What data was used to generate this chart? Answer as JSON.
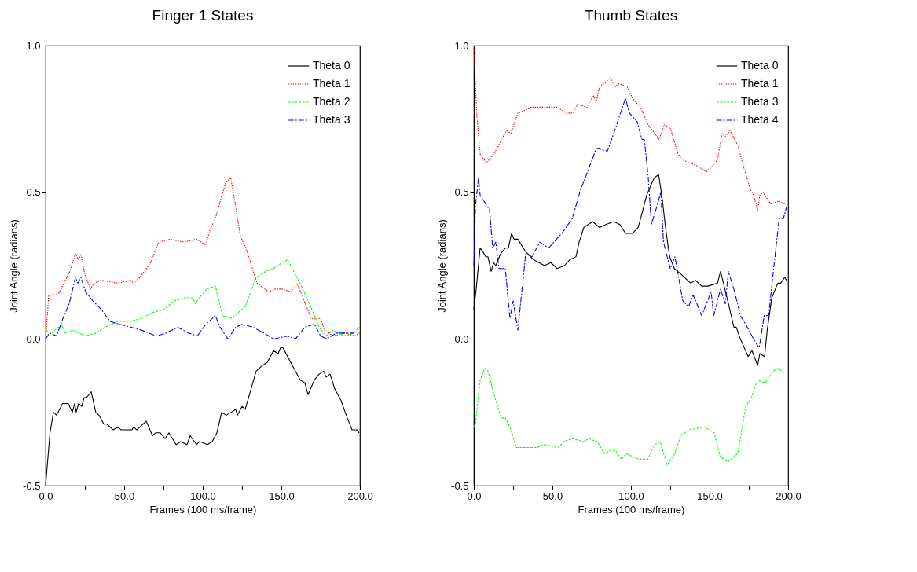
{
  "chart_data": [
    {
      "type": "line",
      "title": "Finger 1 States",
      "xlabel": "Frames (100 ms/frame)",
      "ylabel": "Joint Angle (radians)",
      "legend": "top right",
      "grid": false,
      "xlim": [
        0,
        200
      ],
      "ylim": [
        -0.5,
        1.0
      ],
      "xticks": [
        {
          "value": 0,
          "label": "0.0"
        },
        {
          "value": 25,
          "label": null
        },
        {
          "value": 50,
          "label": "50.0"
        },
        {
          "value": 75,
          "label": null
        },
        {
          "value": 100,
          "label": "100.0"
        },
        {
          "value": 125,
          "label": null
        },
        {
          "value": 150,
          "label": "150.0"
        },
        {
          "value": 175,
          "label": null
        },
        {
          "value": 200,
          "label": "200.0"
        }
      ],
      "yticks": [
        {
          "value": -0.5,
          "label": "-0.5"
        },
        {
          "value": -0.25,
          "label": null
        },
        {
          "value": 0,
          "label": "0.0"
        },
        {
          "value": 0.25,
          "label": null
        },
        {
          "value": 0.5,
          "label": "0.5"
        },
        {
          "value": 0.75,
          "label": null
        },
        {
          "value": 1,
          "label": "1.0"
        }
      ],
      "series": [
        {
          "name": "Theta 0",
          "color": "#000000",
          "line_style": "solid",
          "x": [
            0,
            2.8,
            5,
            7,
            10.8,
            14.4,
            17,
            18.5,
            19.5,
            21,
            23,
            24.5,
            26,
            29,
            31.9,
            34,
            37,
            39,
            43,
            46,
            48,
            55,
            56,
            58,
            62,
            64,
            68,
            70,
            73,
            76,
            78.5,
            83,
            86,
            90,
            92,
            96,
            98,
            103,
            106,
            109,
            112,
            115,
            121,
            122,
            125,
            127,
            134,
            138,
            141,
            145,
            148,
            149.5,
            151,
            157,
            162,
            165,
            167,
            171,
            174,
            177,
            178.5,
            181,
            184,
            188,
            192,
            195,
            198,
            199.5
          ],
          "values": [
            -0.5,
            -0.32,
            -0.25,
            -0.26,
            -0.22,
            -0.22,
            -0.25,
            -0.22,
            -0.25,
            -0.22,
            -0.23,
            -0.2,
            -0.2,
            -0.18,
            -0.25,
            -0.26,
            -0.29,
            -0.29,
            -0.31,
            -0.3,
            -0.31,
            -0.31,
            -0.3,
            -0.31,
            -0.29,
            -0.28,
            -0.33,
            -0.32,
            -0.32,
            -0.34,
            -0.32,
            -0.36,
            -0.35,
            -0.36,
            -0.33,
            -0.36,
            -0.35,
            -0.36,
            -0.35,
            -0.32,
            -0.25,
            -0.26,
            -0.24,
            -0.26,
            -0.23,
            -0.24,
            -0.11,
            -0.09,
            -0.08,
            -0.04,
            -0.05,
            -0.03,
            -0.03,
            -0.09,
            -0.14,
            -0.15,
            -0.19,
            -0.14,
            -0.12,
            -0.11,
            -0.13,
            -0.12,
            -0.17,
            -0.21,
            -0.27,
            -0.31,
            -0.31,
            -0.32
          ]
        },
        {
          "name": "Theta 1",
          "color": "#ff0000",
          "line_style": "dotted",
          "x": [
            0,
            2,
            6,
            9,
            12.5,
            15.4,
            19,
            21,
            22.5,
            25,
            28.6,
            30.8,
            35.5,
            46,
            54,
            56,
            60,
            66.8,
            72,
            79,
            88,
            96,
            102,
            104.5,
            108,
            111.7,
            114.5,
            117.8,
            120,
            124,
            127.5,
            131,
            134.5,
            142,
            146,
            151,
            156,
            160,
            164.5,
            169,
            175,
            177.5,
            183,
            190.6,
            196.6,
            200
          ],
          "values": [
            0.0,
            0.15,
            0.15,
            0.16,
            0.2,
            0.23,
            0.29,
            0.27,
            0.29,
            0.22,
            0.17,
            0.19,
            0.2,
            0.19,
            0.2,
            0.19,
            0.21,
            0.26,
            0.33,
            0.34,
            0.33,
            0.34,
            0.32,
            0.37,
            0.41,
            0.48,
            0.53,
            0.55,
            0.48,
            0.35,
            0.31,
            0.25,
            0.19,
            0.16,
            0.17,
            0.17,
            0.16,
            0.19,
            0.13,
            0.07,
            0.07,
            0.03,
            0.01,
            0.02,
            0.01,
            0.02
          ]
        },
        {
          "name": "Theta 2",
          "color": "#00ff00",
          "line_style": "dashed",
          "x": [
            0,
            4,
            10,
            12.5,
            18,
            25,
            32,
            38,
            46,
            54,
            61,
            68,
            75,
            82,
            88,
            94,
            95,
            102.5,
            108,
            112.5,
            118,
            127,
            134,
            140,
            145,
            150.5,
            154,
            161,
            168,
            174,
            178.5,
            183,
            190,
            196,
            199.5
          ],
          "values": [
            0.03,
            0.02,
            0.05,
            0.02,
            0.03,
            0.01,
            0.02,
            0.04,
            0.06,
            0.06,
            0.07,
            0.09,
            0.1,
            0.13,
            0.14,
            0.14,
            0.12,
            0.17,
            0.18,
            0.08,
            0.07,
            0.11,
            0.21,
            0.23,
            0.24,
            0.26,
            0.27,
            0.2,
            0.12,
            0.04,
            0.01,
            0.03,
            0.01,
            0.02,
            0.04
          ]
        },
        {
          "name": "Theta 3",
          "color": "#0000ff",
          "line_style": "dashdot",
          "x": [
            0,
            2.5,
            7,
            11,
            15,
            19,
            20.5,
            22.5,
            25.5,
            30,
            35.5,
            41,
            47,
            54,
            61,
            70.5,
            76.7,
            84,
            91,
            96.5,
            102,
            108,
            111,
            116,
            121,
            125,
            132,
            139,
            145,
            154,
            159,
            165,
            171,
            175,
            179,
            185,
            196
          ],
          "values": [
            0.0,
            0.02,
            0.01,
            0.07,
            0.12,
            0.21,
            0.19,
            0.21,
            0.16,
            0.13,
            0.1,
            0.06,
            0.05,
            0.04,
            0.03,
            0.01,
            0.02,
            0.04,
            0.02,
            0.01,
            0.05,
            0.08,
            0.04,
            0.0,
            0.04,
            0.05,
            0.04,
            0.02,
            0.0,
            0.01,
            0.0,
            0.04,
            0.05,
            0.01,
            0.0,
            0.02,
            0.02
          ]
        }
      ]
    },
    {
      "type": "line",
      "title": "Thumb States",
      "xlabel": "Frames (100 ms/frame)",
      "ylabel": "Joint Angle (radians)",
      "legend": "top right",
      "grid": false,
      "xlim": [
        0,
        200
      ],
      "ylim": [
        -0.5,
        1.0
      ],
      "xticks": [
        {
          "value": 0,
          "label": "0.0"
        },
        {
          "value": 25,
          "label": null
        },
        {
          "value": 50,
          "label": "50.0"
        },
        {
          "value": 75,
          "label": null
        },
        {
          "value": 100,
          "label": "100.0"
        },
        {
          "value": 125,
          "label": null
        },
        {
          "value": 150,
          "label": "150.0"
        },
        {
          "value": 175,
          "label": null
        },
        {
          "value": 200,
          "label": "200.0"
        }
      ],
      "yticks": [
        -0.5,
        {
          "value": -0.25,
          "label": null
        },
        {
          "value": 0,
          "label": "0.0"
        },
        {
          "value": 0.25,
          "label": null
        },
        0.5,
        {
          "value": 0.75,
          "label": null
        },
        {
          "value": 1,
          "label": "1.0"
        }
      ],
      "series": [
        {
          "name": "Theta 0",
          "color": "#000000",
          "line_style": "solid",
          "x": [
            0,
            1.5,
            4,
            5.5,
            7.6,
            9,
            11,
            12.6,
            14,
            17,
            20,
            22,
            24,
            25.6,
            28,
            32.6,
            38,
            45,
            49,
            53,
            57.6,
            61,
            65,
            67,
            70,
            75.6,
            80,
            84,
            89,
            93,
            96.5,
            101,
            104.6,
            107.6,
            110,
            114,
            115,
            117.6,
            119.6,
            122,
            124.6,
            127.6,
            132,
            138,
            141,
            145,
            149,
            155,
            157,
            161.6,
            165.5,
            167,
            169.6,
            174.6,
            177,
            180.6,
            182,
            185,
            186.7,
            189.6,
            193.4,
            195.3,
            197.8,
            199
          ],
          "values": [
            0.1,
            0.17,
            0.31,
            0.3,
            0.28,
            0.28,
            0.23,
            0.26,
            0.25,
            0.29,
            0.31,
            0.31,
            0.36,
            0.34,
            0.34,
            0.3,
            0.27,
            0.25,
            0.26,
            0.24,
            0.25,
            0.27,
            0.28,
            0.33,
            0.38,
            0.4,
            0.38,
            0.39,
            0.4,
            0.39,
            0.36,
            0.36,
            0.38,
            0.44,
            0.49,
            0.54,
            0.55,
            0.56,
            0.49,
            0.38,
            0.28,
            0.24,
            0.22,
            0.19,
            0.2,
            0.18,
            0.18,
            0.19,
            0.23,
            0.13,
            0.04,
            0.04,
            0.0,
            -0.06,
            -0.04,
            -0.09,
            -0.05,
            -0.06,
            0.03,
            0.14,
            0.19,
            0.19,
            0.21,
            0.2
          ]
        },
        {
          "name": "Theta 1",
          "color": "#ff0000",
          "line_style": "dotted",
          "x": [
            0,
            1.8,
            4,
            8,
            12.5,
            15,
            17.5,
            21,
            23.5,
            28,
            33,
            36.7,
            48,
            53,
            59,
            63,
            66,
            72,
            76,
            78,
            80,
            87,
            90,
            92,
            97.6,
            101,
            106,
            111,
            118,
            121,
            125,
            130,
            133,
            142,
            148,
            152,
            155,
            158,
            160,
            163,
            168,
            172,
            176,
            178,
            180.6,
            182,
            184,
            189,
            194,
            198
          ],
          "values": [
            1.0,
            0.77,
            0.63,
            0.6,
            0.63,
            0.65,
            0.68,
            0.71,
            0.7,
            0.77,
            0.78,
            0.79,
            0.79,
            0.79,
            0.77,
            0.77,
            0.8,
            0.79,
            0.83,
            0.81,
            0.86,
            0.89,
            0.86,
            0.87,
            0.86,
            0.82,
            0.79,
            0.73,
            0.68,
            0.73,
            0.72,
            0.63,
            0.61,
            0.59,
            0.57,
            0.59,
            0.61,
            0.7,
            0.69,
            0.71,
            0.66,
            0.58,
            0.51,
            0.49,
            0.44,
            0.49,
            0.5,
            0.46,
            0.47,
            0.46
          ]
        },
        {
          "name": "Theta 3",
          "color": "#00ff00",
          "line_style": "dashed",
          "x": [
            0,
            1,
            4,
            7,
            9,
            13.4,
            17.6,
            20,
            23,
            27,
            32.6,
            40,
            45,
            54,
            57,
            62.6,
            70,
            73,
            78.6,
            83,
            87,
            90,
            94,
            97,
            100.6,
            105.6,
            110.7,
            115,
            118.6,
            123,
            128,
            131.6,
            136.7,
            146.7,
            153,
            156.7,
            161.7,
            168,
            173,
            176.7,
            180.4,
            185.4,
            190.5,
            194,
            197.8
          ],
          "values": [
            -0.3,
            -0.29,
            -0.14,
            -0.1,
            -0.11,
            -0.2,
            -0.27,
            -0.27,
            -0.3,
            -0.37,
            -0.37,
            -0.37,
            -0.36,
            -0.37,
            -0.35,
            -0.34,
            -0.35,
            -0.34,
            -0.35,
            -0.39,
            -0.38,
            -0.38,
            -0.41,
            -0.39,
            -0.4,
            -0.41,
            -0.41,
            -0.36,
            -0.35,
            -0.43,
            -0.39,
            -0.33,
            -0.31,
            -0.3,
            -0.32,
            -0.4,
            -0.42,
            -0.39,
            -0.23,
            -0.2,
            -0.14,
            -0.15,
            -0.11,
            -0.1,
            -0.12
          ]
        },
        {
          "name": "Theta 4",
          "color": "#0000ff",
          "line_style": "dashdot",
          "x": [
            0,
            1,
            3,
            4,
            7.6,
            10,
            12,
            14,
            16,
            20,
            23,
            25,
            28,
            33,
            37,
            42,
            47.6,
            56,
            62.6,
            68,
            71,
            78,
            85,
            89,
            96.5,
            99,
            104,
            107,
            108.5,
            111,
            113,
            116.4,
            119,
            120.7,
            125,
            128,
            133,
            136.6,
            139.6,
            145,
            151,
            152.7,
            157,
            160,
            162,
            166,
            169.6,
            173,
            179,
            181.6,
            184.8,
            187.6,
            190.6,
            194.3,
            197,
            199
          ],
          "values": [
            0.25,
            0.45,
            0.55,
            0.49,
            0.46,
            0.44,
            0.31,
            0.33,
            0.24,
            0.24,
            0.07,
            0.13,
            0.03,
            0.29,
            0.28,
            0.33,
            0.31,
            0.36,
            0.41,
            0.51,
            0.55,
            0.65,
            0.64,
            0.7,
            0.82,
            0.77,
            0.74,
            0.68,
            0.68,
            0.55,
            0.39,
            0.45,
            0.5,
            0.33,
            0.24,
            0.28,
            0.13,
            0.11,
            0.15,
            0.08,
            0.16,
            0.08,
            0.17,
            0.12,
            0.23,
            0.16,
            0.08,
            0.05,
            -0.01,
            -0.03,
            0.08,
            0.08,
            0.23,
            0.41,
            0.41,
            0.45
          ]
        }
      ]
    }
  ]
}
